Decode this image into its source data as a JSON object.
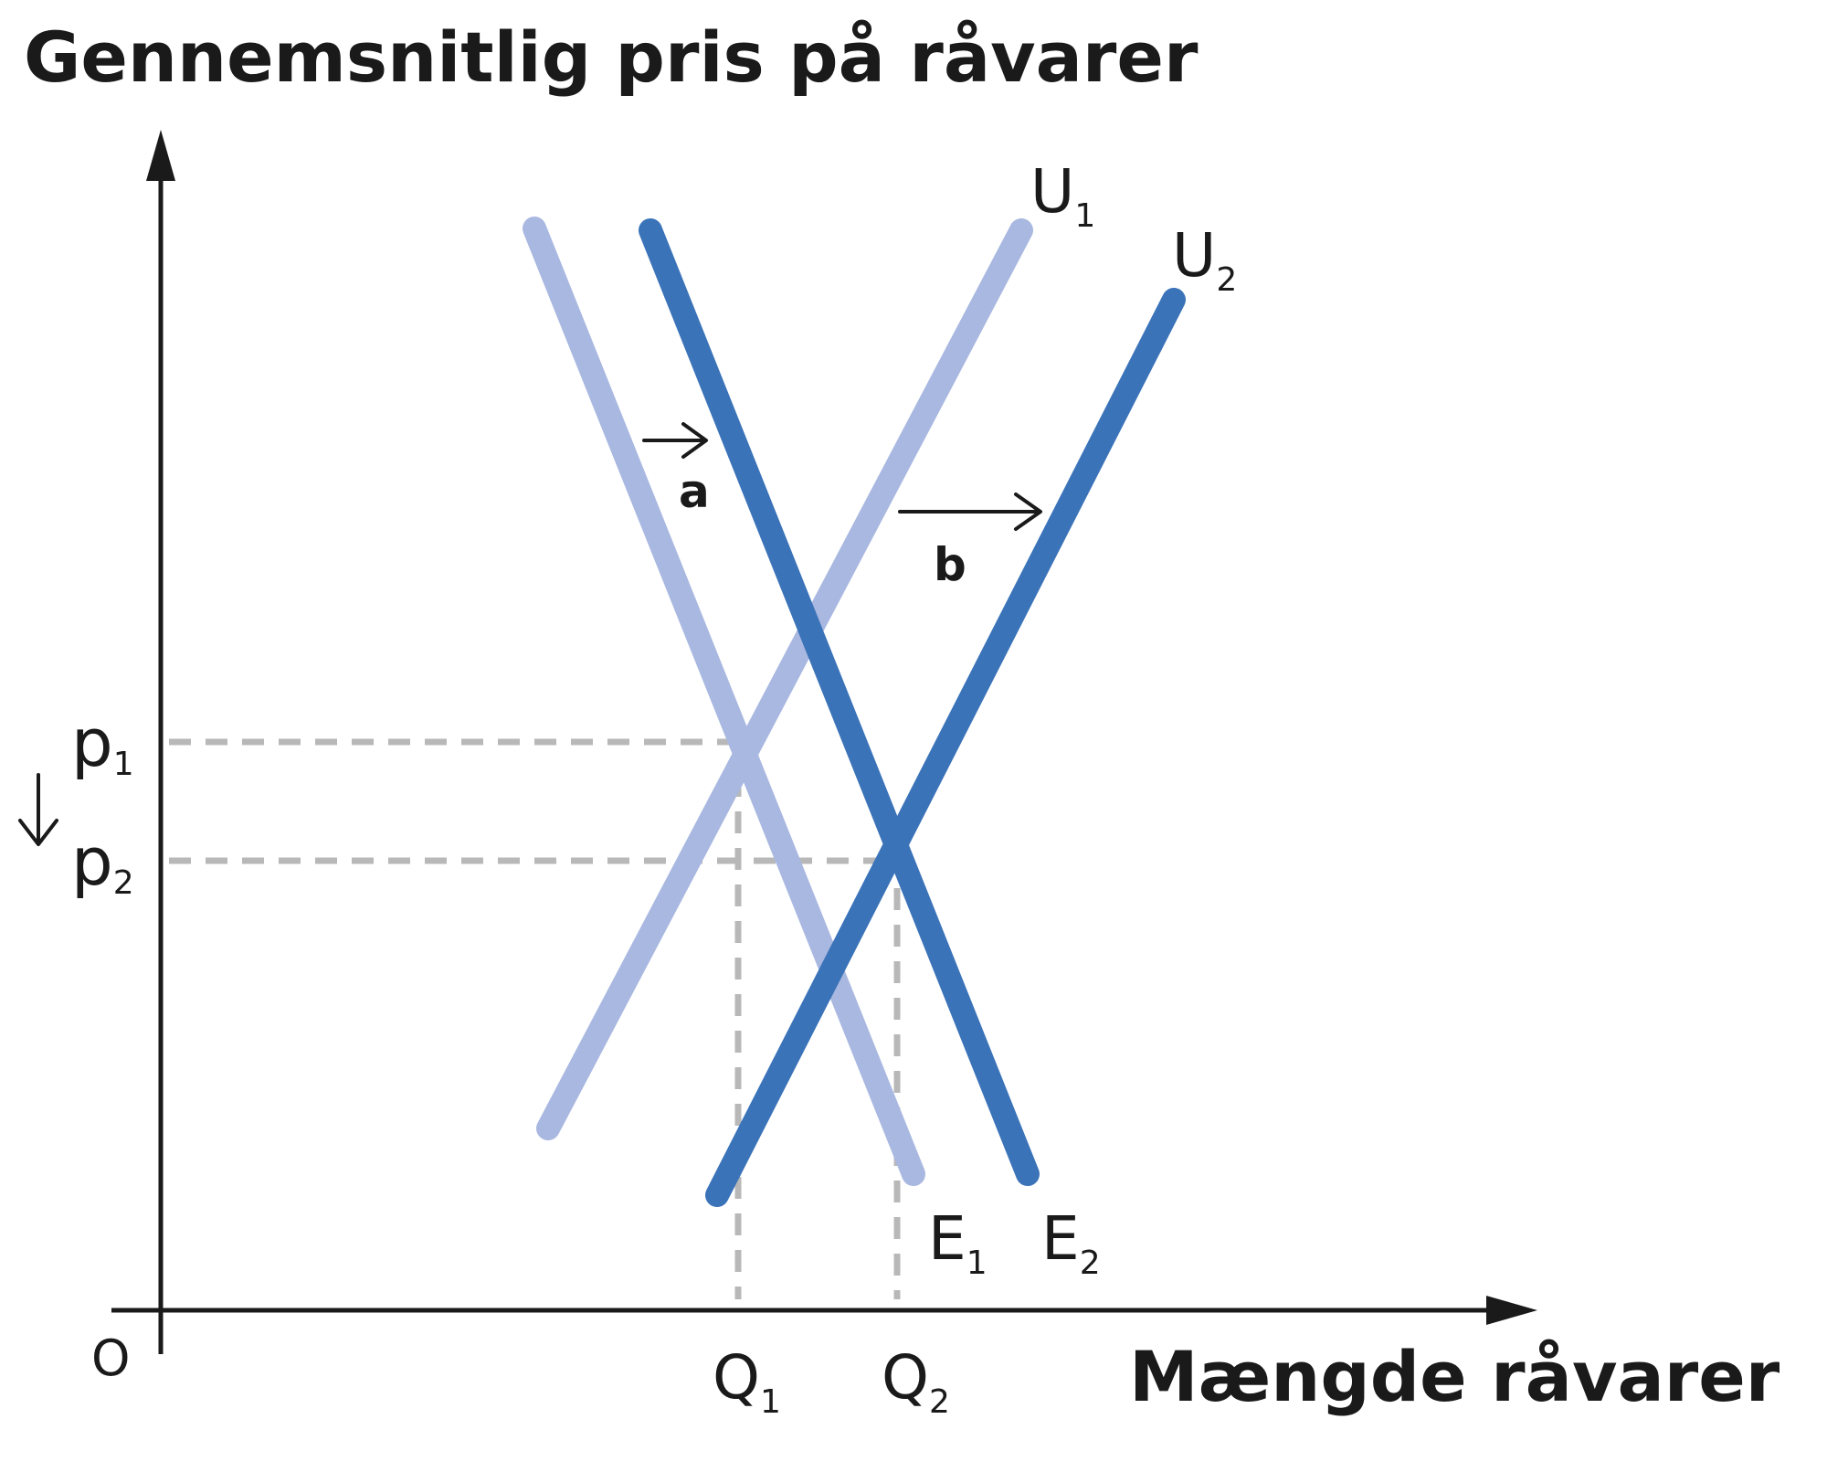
{
  "yaxis": {
    "title": "Gennemsnitlig pris på råvarer"
  },
  "xaxis": {
    "title": "Mængde råvarer"
  },
  "origin_label": "O",
  "colors": {
    "light": "#a9b8e0",
    "dark": "#3b73b9",
    "guide": "#b8b8b8",
    "ink": "#1a1a1a"
  },
  "curves": {
    "E1": {
      "base": "E",
      "sub": "1"
    },
    "E2": {
      "base": "E",
      "sub": "2"
    },
    "U1": {
      "base": "U",
      "sub": "1"
    },
    "U2": {
      "base": "U",
      "sub": "2"
    }
  },
  "prices": {
    "p1": {
      "base": "p",
      "sub": "1"
    },
    "p2": {
      "base": "p",
      "sub": "2"
    }
  },
  "quantities": {
    "Q1": {
      "base": "Q",
      "sub": "1"
    },
    "Q2": {
      "base": "Q",
      "sub": "2"
    }
  },
  "shifts": {
    "a": "a",
    "b": "b"
  }
}
